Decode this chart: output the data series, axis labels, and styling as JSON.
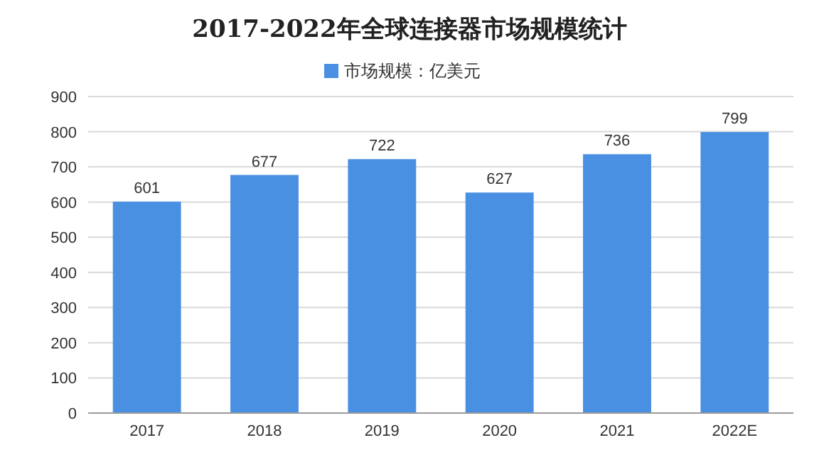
{
  "chart_data": {
    "type": "bar",
    "title": "2017-2022年全球连接器市场规模统计",
    "categories": [
      "2017",
      "2018",
      "2019",
      "2020",
      "2021",
      "2022E"
    ],
    "series": [
      {
        "name": "市场规模：亿美元",
        "color": "#4a90e2",
        "values": [
          601,
          677,
          722,
          627,
          736,
          799
        ]
      }
    ],
    "ylim": [
      0,
      900
    ],
    "yticks": [
      0,
      100,
      200,
      300,
      400,
      500,
      600,
      700,
      800,
      900
    ],
    "grid": "y",
    "legend": "top",
    "data_labels": true
  }
}
